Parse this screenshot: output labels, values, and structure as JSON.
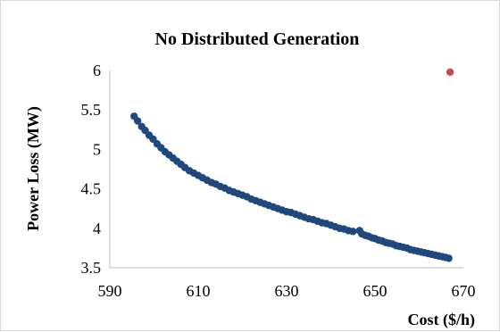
{
  "chart_data": {
    "type": "scatter",
    "title": "No Distributed Generation",
    "xlabel": "Cost ($/h)",
    "ylabel": "Power Loss (MW)",
    "xlim": [
      590,
      670
    ],
    "ylim": [
      3.5,
      6
    ],
    "x_ticks": [
      "590",
      "610",
      "630",
      "650",
      "670"
    ],
    "y_ticks": [
      "3.5",
      "4",
      "4.5",
      "5",
      "5.5",
      "6"
    ],
    "grid": false,
    "legend": "none",
    "colors": {
      "pareto_front": "#1F497D",
      "base_case": "#C0504D"
    },
    "series": [
      {
        "points": [
          [
            595.5,
            5.42
          ],
          [
            596.3,
            5.36
          ],
          [
            597.2,
            5.29
          ],
          [
            598.0,
            5.24
          ],
          [
            598.9,
            5.18
          ],
          [
            599.8,
            5.13
          ],
          [
            600.7,
            5.07
          ],
          [
            601.6,
            5.02
          ],
          [
            602.5,
            4.97
          ],
          [
            603.4,
            4.93
          ],
          [
            604.3,
            4.89
          ],
          [
            605.2,
            4.85
          ],
          [
            606.1,
            4.81
          ],
          [
            607.0,
            4.77
          ],
          [
            608.0,
            4.73
          ],
          [
            609.0,
            4.7
          ],
          [
            610.0,
            4.67
          ],
          [
            611.0,
            4.64
          ],
          [
            612.0,
            4.61
          ],
          [
            613.0,
            4.58
          ],
          [
            614.0,
            4.56
          ],
          [
            615.0,
            4.53
          ],
          [
            616.0,
            4.51
          ],
          [
            617.0,
            4.48
          ],
          [
            618.0,
            4.46
          ],
          [
            619.0,
            4.44
          ],
          [
            620.0,
            4.42
          ],
          [
            621.0,
            4.4
          ],
          [
            622.0,
            4.37
          ],
          [
            623.0,
            4.35
          ],
          [
            624.0,
            4.33
          ],
          [
            625.0,
            4.31
          ],
          [
            626.0,
            4.29
          ],
          [
            627.0,
            4.27
          ],
          [
            628.0,
            4.25
          ],
          [
            629.0,
            4.23
          ],
          [
            630.0,
            4.21
          ],
          [
            631.0,
            4.2
          ],
          [
            632.0,
            4.18
          ],
          [
            633.0,
            4.16
          ],
          [
            634.0,
            4.14
          ],
          [
            635.0,
            4.12
          ],
          [
            636.0,
            4.11
          ],
          [
            637.0,
            4.09
          ],
          [
            638.0,
            4.07
          ],
          [
            639.0,
            4.06
          ],
          [
            640.0,
            4.04
          ],
          [
            641.0,
            4.02
          ],
          [
            642.0,
            4.0
          ],
          [
            643.0,
            3.99
          ],
          [
            644.0,
            3.97
          ],
          [
            645.0,
            3.96
          ],
          [
            646.5,
            3.97
          ],
          [
            647.0,
            3.93
          ],
          [
            647.8,
            3.91
          ],
          [
            648.5,
            3.9
          ],
          [
            649.3,
            3.88
          ],
          [
            650.0,
            3.87
          ],
          [
            650.8,
            3.85
          ],
          [
            651.6,
            3.84
          ],
          [
            652.4,
            3.82
          ],
          [
            653.2,
            3.81
          ],
          [
            654.0,
            3.8
          ],
          [
            654.8,
            3.78
          ],
          [
            655.6,
            3.77
          ],
          [
            656.4,
            3.76
          ],
          [
            657.2,
            3.75
          ],
          [
            658.0,
            3.73
          ],
          [
            658.8,
            3.72
          ],
          [
            659.6,
            3.71
          ],
          [
            660.4,
            3.7
          ],
          [
            661.2,
            3.69
          ],
          [
            662.0,
            3.68
          ],
          [
            662.8,
            3.67
          ],
          [
            663.6,
            3.66
          ],
          [
            664.4,
            3.65
          ],
          [
            665.2,
            3.64
          ],
          [
            666.0,
            3.63
          ],
          [
            666.7,
            3.62
          ]
        ]
      },
      {
        "points": [
          [
            667.0,
            5.98
          ]
        ]
      }
    ]
  }
}
